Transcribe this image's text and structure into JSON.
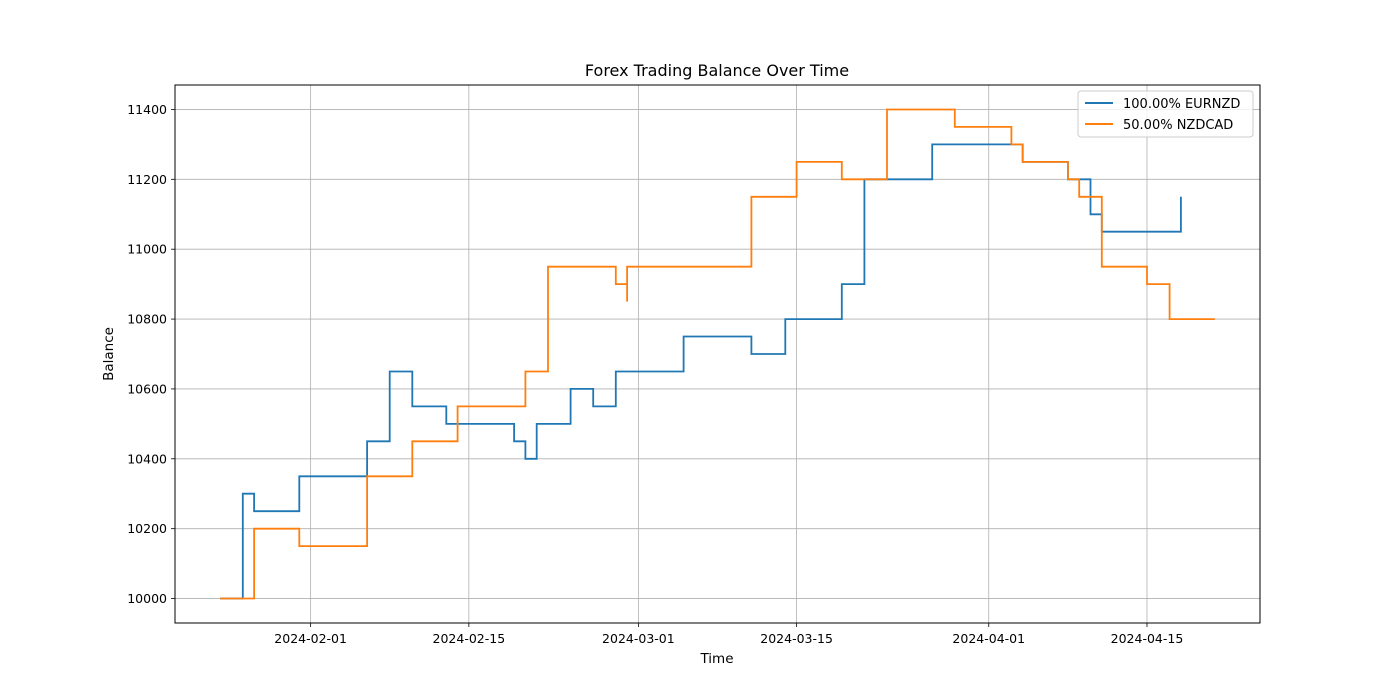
{
  "chart_data": {
    "type": "line",
    "title": "Forex Trading Balance Over Time",
    "xlabel": "Time",
    "ylabel": "Balance",
    "xlim": [
      "2024-01-20",
      "2024-04-25"
    ],
    "ylim": [
      9930,
      11470
    ],
    "x_ticks": [
      "2024-02-01",
      "2024-02-15",
      "2024-03-01",
      "2024-03-15",
      "2024-04-01",
      "2024-04-15"
    ],
    "y_ticks": [
      10000,
      10200,
      10400,
      10600,
      10800,
      11000,
      11200,
      11400
    ],
    "grid": true,
    "legend_position": "top-right",
    "series": [
      {
        "name": "100.00% EURNZD",
        "color": "#1f77b4",
        "points": [
          [
            "2024-01-24",
            10000
          ],
          [
            "2024-01-26",
            10000
          ],
          [
            "2024-01-26",
            10100
          ],
          [
            "2024-01-26",
            10200
          ],
          [
            "2024-01-26",
            10300
          ],
          [
            "2024-01-27",
            10300
          ],
          [
            "2024-01-27",
            10250
          ],
          [
            "2024-01-31",
            10250
          ],
          [
            "2024-01-31",
            10350
          ],
          [
            "2024-02-06",
            10350
          ],
          [
            "2024-02-06",
            10450
          ],
          [
            "2024-02-08",
            10450
          ],
          [
            "2024-02-08",
            10550
          ],
          [
            "2024-02-08",
            10650
          ],
          [
            "2024-02-10",
            10650
          ],
          [
            "2024-02-10",
            10600
          ],
          [
            "2024-02-10",
            10550
          ],
          [
            "2024-02-13",
            10550
          ],
          [
            "2024-02-13",
            10500
          ],
          [
            "2024-02-19",
            10500
          ],
          [
            "2024-02-19",
            10450
          ],
          [
            "2024-02-20",
            10450
          ],
          [
            "2024-02-20",
            10400
          ],
          [
            "2024-02-21",
            10400
          ],
          [
            "2024-02-21",
            10500
          ],
          [
            "2024-02-24",
            10500
          ],
          [
            "2024-02-24",
            10600
          ],
          [
            "2024-02-26",
            10600
          ],
          [
            "2024-02-26",
            10550
          ],
          [
            "2024-02-28",
            10550
          ],
          [
            "2024-02-28",
            10650
          ],
          [
            "2024-03-05",
            10650
          ],
          [
            "2024-03-05",
            10750
          ],
          [
            "2024-03-11",
            10750
          ],
          [
            "2024-03-11",
            10700
          ],
          [
            "2024-03-14",
            10700
          ],
          [
            "2024-03-14",
            10800
          ],
          [
            "2024-03-19",
            10800
          ],
          [
            "2024-03-19",
            10900
          ],
          [
            "2024-03-21",
            10900
          ],
          [
            "2024-03-21",
            11000
          ],
          [
            "2024-03-21",
            11200
          ],
          [
            "2024-03-27",
            11200
          ],
          [
            "2024-03-27",
            11300
          ],
          [
            "2024-04-04",
            11300
          ],
          [
            "2024-04-04",
            11250
          ],
          [
            "2024-04-08",
            11250
          ],
          [
            "2024-04-08",
            11200
          ],
          [
            "2024-04-10",
            11200
          ],
          [
            "2024-04-10",
            11100
          ],
          [
            "2024-04-11",
            11100
          ],
          [
            "2024-04-11",
            11050
          ],
          [
            "2024-04-18",
            11050
          ],
          [
            "2024-04-18",
            11150
          ]
        ]
      },
      {
        "name": "50.00% NZDCAD",
        "color": "#ff7f0e",
        "points": [
          [
            "2024-01-24",
            10000
          ],
          [
            "2024-01-27",
            10000
          ],
          [
            "2024-01-27",
            10100
          ],
          [
            "2024-01-27",
            10200
          ],
          [
            "2024-01-31",
            10200
          ],
          [
            "2024-01-31",
            10150
          ],
          [
            "2024-02-06",
            10150
          ],
          [
            "2024-02-06",
            10250
          ],
          [
            "2024-02-06",
            10350
          ],
          [
            "2024-02-10",
            10350
          ],
          [
            "2024-02-10",
            10450
          ],
          [
            "2024-02-14",
            10450
          ],
          [
            "2024-02-14",
            10550
          ],
          [
            "2024-02-20",
            10550
          ],
          [
            "2024-02-20",
            10650
          ],
          [
            "2024-02-22",
            10650
          ],
          [
            "2024-02-22",
            10750
          ],
          [
            "2024-02-22",
            10850
          ],
          [
            "2024-02-22",
            10950
          ],
          [
            "2024-02-28",
            10950
          ],
          [
            "2024-02-28",
            10900
          ],
          [
            "2024-02-29",
            10900
          ],
          [
            "2024-02-29",
            10850
          ],
          [
            "2024-02-29",
            10950
          ],
          [
            "2024-03-11",
            10950
          ],
          [
            "2024-03-11",
            11150
          ],
          [
            "2024-03-15",
            11150
          ],
          [
            "2024-03-15",
            11250
          ],
          [
            "2024-03-19",
            11250
          ],
          [
            "2024-03-19",
            11200
          ],
          [
            "2024-03-23",
            11200
          ],
          [
            "2024-03-23",
            11400
          ],
          [
            "2024-03-29",
            11400
          ],
          [
            "2024-03-29",
            11350
          ],
          [
            "2024-04-03",
            11350
          ],
          [
            "2024-04-03",
            11300
          ],
          [
            "2024-04-04",
            11300
          ],
          [
            "2024-04-04",
            11250
          ],
          [
            "2024-04-08",
            11250
          ],
          [
            "2024-04-08",
            11200
          ],
          [
            "2024-04-09",
            11200
          ],
          [
            "2024-04-09",
            11150
          ],
          [
            "2024-04-11",
            11150
          ],
          [
            "2024-04-11",
            11000
          ],
          [
            "2024-04-11",
            10950
          ],
          [
            "2024-04-15",
            10950
          ],
          [
            "2024-04-15",
            10900
          ],
          [
            "2024-04-17",
            10900
          ],
          [
            "2024-04-17",
            10800
          ],
          [
            "2024-04-21",
            10800
          ]
        ]
      }
    ]
  }
}
